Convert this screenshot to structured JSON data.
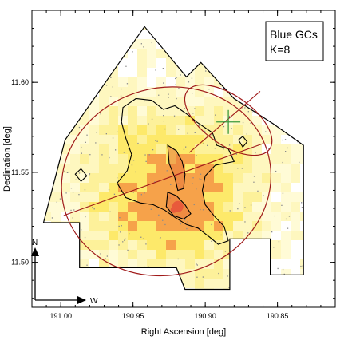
{
  "chart_data": {
    "type": "heatmap",
    "title": "",
    "xlabel": "Right Ascension [deg]",
    "ylabel": "Declination [deg]",
    "xlim": [
      191.02,
      190.81
    ],
    "ylim": [
      11.475,
      11.64
    ],
    "x_inverted": true,
    "xticks": [
      {
        "value": 191.0,
        "label": "191.00"
      },
      {
        "value": 190.95,
        "label": "190.95"
      },
      {
        "value": 190.9,
        "label": "190.90"
      },
      {
        "value": 190.85,
        "label": "190.85"
      }
    ],
    "yticks": [
      {
        "value": 11.5,
        "label": "11.50"
      },
      {
        "value": 11.55,
        "label": "11.55"
      },
      {
        "value": 11.6,
        "label": "11.60"
      }
    ],
    "annotations": {
      "box_line1": "Blue GCs",
      "box_line2": "K=8",
      "north_label": "N",
      "west_label": "W"
    },
    "colors": {
      "density_low": "#fffbd6",
      "density_mid": "#fde96a",
      "density_high": "#f6a24a",
      "density_peak": "#e8353a",
      "contour": "#000000",
      "ellipse": "#a01a1a",
      "marker": "#3c9a3c",
      "points": "#8a8a8a",
      "footprint": "#000000"
    },
    "footprint": [
      [
        190.997,
        11.568
      ],
      [
        190.942,
        11.631
      ],
      [
        190.913,
        11.603
      ],
      [
        190.903,
        11.611
      ],
      [
        190.88,
        11.591
      ],
      [
        190.853,
        11.577
      ],
      [
        190.832,
        11.565
      ],
      [
        190.832,
        11.493
      ],
      [
        190.855,
        11.493
      ],
      [
        190.855,
        11.513
      ],
      [
        190.883,
        11.513
      ],
      [
        190.883,
        11.485
      ],
      [
        190.914,
        11.485
      ],
      [
        190.92,
        11.497
      ],
      [
        190.987,
        11.497
      ],
      [
        190.987,
        11.522
      ],
      [
        191.012,
        11.522
      ]
    ],
    "ellipses": [
      {
        "cx": 190.927,
        "cy": 11.545,
        "rx": 0.073,
        "ry": 0.052,
        "angle_deg": 15,
        "major_axis": [
          [
            190.998,
            11.526
          ],
          [
            190.86,
            11.566
          ]
        ]
      },
      {
        "cx": 190.884,
        "cy": 11.579,
        "rx": 0.017,
        "ry": 0.028,
        "angle_deg": 55,
        "major_axis": [
          [
            190.911,
            11.561
          ],
          [
            190.862,
            11.595
          ]
        ]
      }
    ],
    "marker": {
      "x": 190.884,
      "y": 11.578,
      "type": "cross"
    },
    "peak": {
      "x": 190.919,
      "y": 11.531
    },
    "contours": [
      {
        "level": 1,
        "points": [
          [
            190.957,
            11.586
          ],
          [
            190.948,
            11.591
          ],
          [
            190.937,
            11.59
          ],
          [
            190.929,
            11.585
          ],
          [
            190.921,
            11.587
          ],
          [
            190.912,
            11.582
          ],
          [
            190.906,
            11.578
          ],
          [
            190.895,
            11.572
          ],
          [
            190.892,
            11.565
          ],
          [
            190.884,
            11.563
          ],
          [
            190.88,
            11.556
          ],
          [
            190.893,
            11.554
          ],
          [
            190.9,
            11.548
          ],
          [
            190.902,
            11.54
          ],
          [
            190.9,
            11.532
          ],
          [
            190.893,
            11.525
          ],
          [
            190.887,
            11.52
          ],
          [
            190.884,
            11.512
          ],
          [
            190.891,
            11.51
          ],
          [
            190.897,
            11.514
          ],
          [
            190.905,
            11.519
          ],
          [
            190.913,
            11.521
          ],
          [
            190.921,
            11.525
          ],
          [
            190.928,
            11.529
          ],
          [
            190.936,
            11.532
          ],
          [
            190.945,
            11.533
          ],
          [
            190.955,
            11.536
          ],
          [
            190.961,
            11.544
          ],
          [
            190.954,
            11.551
          ],
          [
            190.951,
            11.56
          ],
          [
            190.955,
            11.569
          ],
          [
            190.958,
            11.578
          ]
        ]
      },
      {
        "level": 1,
        "points": [
          [
            190.99,
            11.549
          ],
          [
            190.986,
            11.552
          ],
          [
            190.982,
            11.548
          ],
          [
            190.986,
            11.545
          ]
        ]
      },
      {
        "level": 1,
        "points": [
          [
            190.877,
            11.568
          ],
          [
            190.874,
            11.57
          ],
          [
            190.871,
            11.567
          ],
          [
            190.874,
            11.564
          ]
        ]
      },
      {
        "level": 2,
        "points": [
          [
            190.926,
            11.565
          ],
          [
            190.92,
            11.562
          ],
          [
            190.916,
            11.556
          ],
          [
            190.914,
            11.549
          ],
          [
            190.915,
            11.541
          ],
          [
            190.919,
            11.54
          ],
          [
            190.921,
            11.547
          ],
          [
            190.925,
            11.555
          ]
        ]
      },
      {
        "level": 2,
        "points": [
          [
            190.926,
            11.539
          ],
          [
            190.92,
            11.537
          ],
          [
            190.914,
            11.532
          ],
          [
            190.91,
            11.527
          ],
          [
            190.915,
            11.524
          ],
          [
            190.922,
            11.526
          ],
          [
            190.927,
            11.531
          ]
        ]
      }
    ]
  }
}
